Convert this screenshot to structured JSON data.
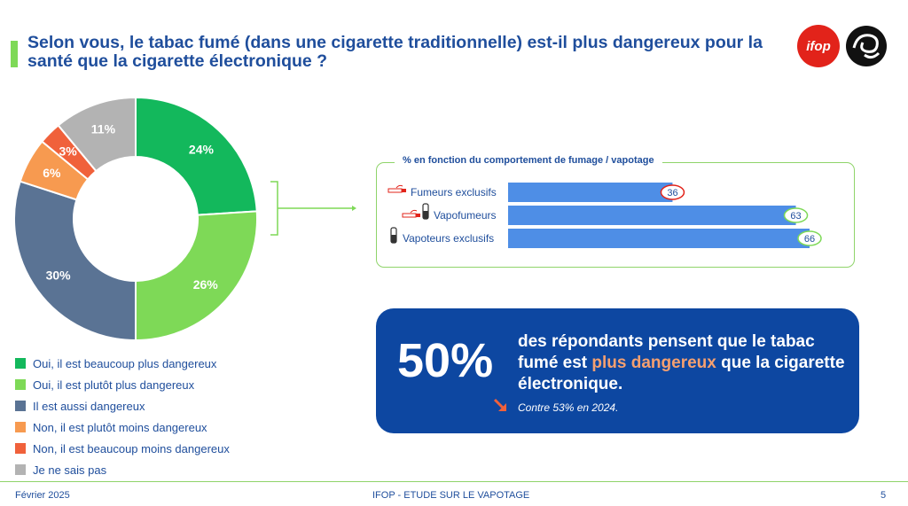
{
  "title": "Selon vous, le tabac fumé (dans une cigarette traditionnelle) est-il plus dangereux pour la santé que la cigarette électronique ?",
  "logos": {
    "ifop": "ifop"
  },
  "colors": {
    "accent_green": "#7ed957",
    "title_blue": "#1f4e9c",
    "callout_blue": "#0d47a1",
    "highlight_orange": "#f5a070"
  },
  "chart_data": [
    {
      "type": "pie",
      "donut": true,
      "categories": [
        "Oui, il est beaucoup plus dangereux",
        "Oui, il est plutôt plus dangereux",
        "Il est aussi dangereux",
        "Non, il est plutôt moins dangereux",
        "Non, il est beaucoup moins dangereux",
        "Je ne sais pas"
      ],
      "values": [
        24,
        26,
        30,
        6,
        3,
        11
      ],
      "labels": [
        "24%",
        "26%",
        "30%",
        "6%",
        "3%",
        "11%"
      ],
      "colors": [
        "#13b85c",
        "#7ed957",
        "#5a7394",
        "#f79a50",
        "#f0613b",
        "#b3b3b3"
      ],
      "legend_position": "bottom-left"
    },
    {
      "type": "bar",
      "orientation": "horizontal",
      "title": "% en fonction du comportement de fumage / vapotage",
      "categories": [
        "Fumeurs exclusifs",
        "Vapofumeurs",
        "Vapoteurs exclusifs"
      ],
      "values": [
        36,
        63,
        66
      ],
      "labels": [
        "36",
        "63",
        "66"
      ],
      "bar_color": "#4e8ee6",
      "marker_colors": [
        "#e2231a",
        "#7ed957",
        "#7ed957"
      ],
      "category_icons": [
        [
          "cigarette-icon"
        ],
        [
          "cigarette-icon",
          "vape-pen-icon"
        ],
        [
          "vape-pen-icon"
        ]
      ],
      "xlim": [
        0,
        66
      ]
    }
  ],
  "callout": {
    "percent": "50%",
    "text_before": "des répondants pensent que le tabac fumé est ",
    "highlight": "plus dangereux",
    "text_after": " que la cigarette électronique.",
    "comparison": "Contre 53% en 2024.",
    "trend_icon": "down-arrow-icon"
  },
  "footer": {
    "date": "Février 2025",
    "center": "IFOP - ETUDE SUR LE VAPOTAGE",
    "page": "5"
  }
}
